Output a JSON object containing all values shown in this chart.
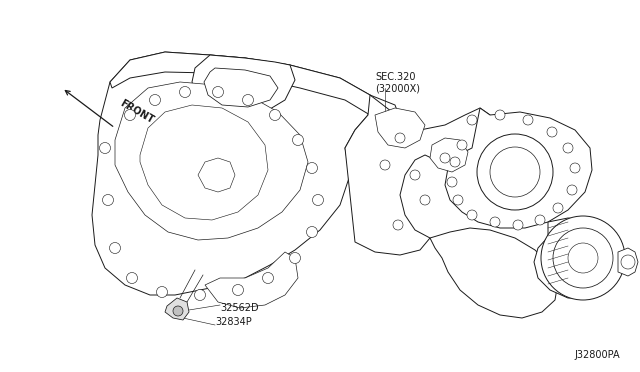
{
  "bg_color": "#ffffff",
  "line_color": "#1a1a1a",
  "lw": 0.7,
  "labels": {
    "front": "FRONT",
    "sec": "SEC.320\n(32000X)",
    "part1": "32562D",
    "part2": "32834P",
    "diagram_ref": "J32800PA"
  },
  "figsize": [
    6.4,
    3.72
  ],
  "dpi": 100
}
